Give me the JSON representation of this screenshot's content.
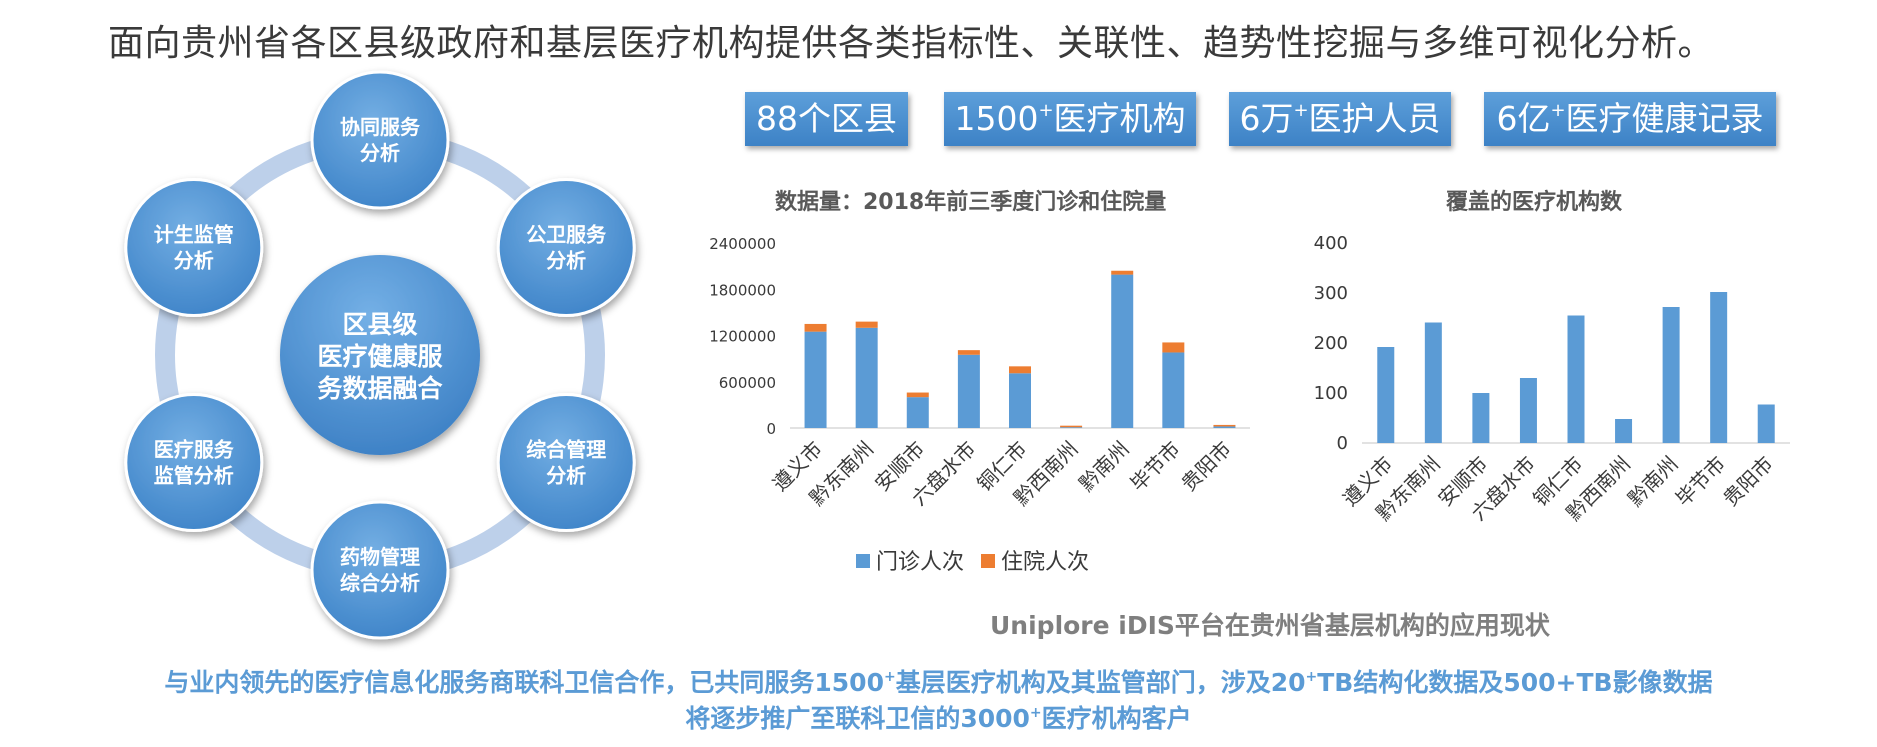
{
  "headline": "面向贵州省各区县级政府和基层医疗机构提供各类指标性、关联性、趋势性挖掘与多维可视化分析。",
  "stats": [
    {
      "main": "88个区县",
      "pre": "",
      "post": ""
    },
    {
      "main": "",
      "pre": "1500",
      "post": "医疗机构"
    },
    {
      "main": "",
      "pre": "6万",
      "post": "医护人员"
    },
    {
      "main": "",
      "pre": "6亿",
      "post": "医疗健康记录"
    }
  ],
  "stat_sup": "+",
  "diagram": {
    "center": [
      "区县级",
      "医疗健康服",
      "务数据融合"
    ],
    "nodes": [
      [
        "协同服务",
        "分析"
      ],
      [
        "公卫服务",
        "分析"
      ],
      [
        "综合管理",
        "分析"
      ],
      [
        "药物管理",
        "综合分析"
      ],
      [
        "医疗服务",
        "监管分析"
      ],
      [
        "计生监管",
        "分析"
      ]
    ]
  },
  "colors": {
    "blue": "#5b9bd5",
    "orange": "#ed7d31",
    "ring": "#bdd0ea",
    "node_dark": "#3d83c8",
    "node_light": "#6fa9de"
  },
  "chart_data": [
    {
      "type": "bar",
      "stacked": true,
      "title": "数据量：2018年前三季度门诊和住院量",
      "categories": [
        "遵义市",
        "黔东南州",
        "安顺市",
        "六盘水市",
        "铜仁市",
        "黔西南州",
        "黔南州",
        "毕节市",
        "贵阳市"
      ],
      "series": [
        {
          "name": "门诊人次",
          "values": [
            1250000,
            1300000,
            400000,
            950000,
            710000,
            10000,
            1990000,
            980000,
            20000
          ]
        },
        {
          "name": "住院人次",
          "values": [
            100000,
            80000,
            60000,
            60000,
            90000,
            20000,
            50000,
            130000,
            20000
          ]
        }
      ],
      "ylim": [
        0,
        2400000
      ],
      "yticks": [
        "0",
        "600000",
        "1200000",
        "1800000",
        "2400000"
      ],
      "legend": "bottom",
      "grid": false
    },
    {
      "type": "bar",
      "title": "覆盖的医疗机构数",
      "categories": [
        "遵义市",
        "黔东南州",
        "安顺市",
        "六盘水市",
        "铜仁市",
        "黔西南州",
        "黔南州",
        "毕节市",
        "贵阳市"
      ],
      "series": [
        {
          "values": [
            192,
            241,
            100,
            130,
            255,
            48,
            272,
            302,
            77
          ]
        }
      ],
      "ylim": [
        0,
        400
      ],
      "yticks": [
        "0",
        "100",
        "200",
        "300",
        "400"
      ],
      "grid": false
    }
  ],
  "platform_caption": "Uniplore iDIS平台在贵州省基层机构的应用现状",
  "footer": {
    "line1_a": "与业内领先的医疗信息化服务商联科卫信合作，已共同服务1500",
    "line1_b": "基层医疗机构及其监管部门，涉及20",
    "line1_c": "TB结构化数据及500+TB影像数据",
    "line2_a": "将逐步推广至联科卫信的3000",
    "line2_b": "医疗机构客户",
    "sup": "+"
  }
}
